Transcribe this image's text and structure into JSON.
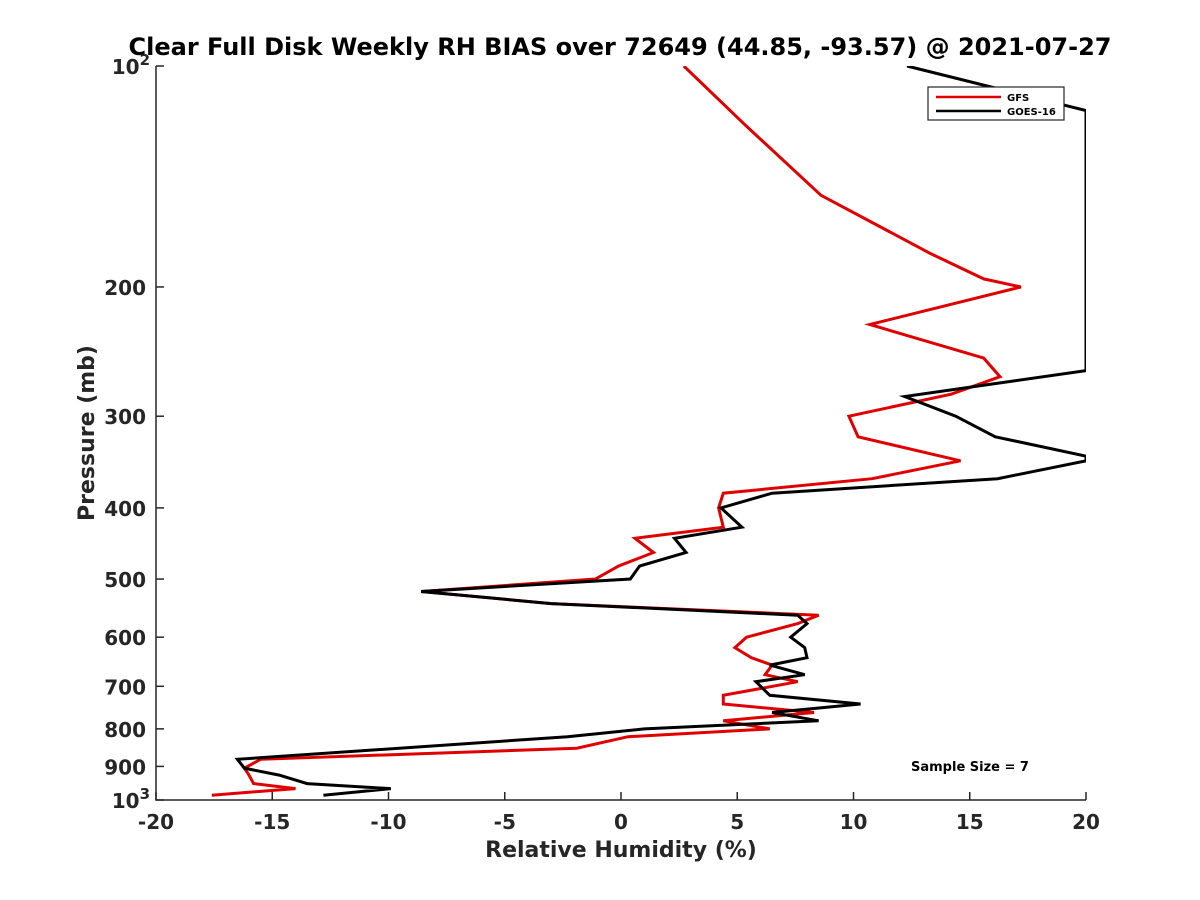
{
  "chart_data": {
    "type": "line",
    "title": "Clear Full Disk Weekly RH BIAS over 72649 (44.85, -93.57) @ 2021-07-27",
    "xlabel": "Relative Humidity (%)",
    "ylabel": "Pressure (mb)",
    "xlim": [
      -20,
      20
    ],
    "ylim": [
      100,
      1000
    ],
    "y_scale": "log",
    "y_reversed": true,
    "x_ticks": [
      {
        "value": -20,
        "label": "-20"
      },
      {
        "value": -15,
        "label": "-15"
      },
      {
        "value": -10,
        "label": "-10"
      },
      {
        "value": -5,
        "label": "-5"
      },
      {
        "value": 0,
        "label": "0"
      },
      {
        "value": 5,
        "label": "5"
      },
      {
        "value": 10,
        "label": "10"
      },
      {
        "value": 15,
        "label": "15"
      },
      {
        "value": 20,
        "label": "20"
      }
    ],
    "y_ticks": [
      {
        "value": 100,
        "base": "10",
        "exp": "2"
      },
      {
        "value": 200,
        "base": "200",
        "exp": ""
      },
      {
        "value": 300,
        "base": "300",
        "exp": ""
      },
      {
        "value": 400,
        "base": "400",
        "exp": ""
      },
      {
        "value": 500,
        "base": "500",
        "exp": ""
      },
      {
        "value": 600,
        "base": "600",
        "exp": ""
      },
      {
        "value": 700,
        "base": "700",
        "exp": ""
      },
      {
        "value": 800,
        "base": "800",
        "exp": ""
      },
      {
        "value": 900,
        "base": "900",
        "exp": ""
      },
      {
        "value": 1000,
        "base": "10",
        "exp": "3"
      }
    ],
    "grid": false,
    "legend_position": "top-right",
    "annotation": "Sample Size = 7",
    "series": [
      {
        "name": "GFS",
        "color": "#e00000",
        "points": [
          [
            2.7,
            100
          ],
          [
            5.3,
            120
          ],
          [
            8.6,
            150
          ],
          [
            13.3,
            180
          ],
          [
            15.6,
            195
          ],
          [
            17.2,
            200
          ],
          [
            10.7,
            225
          ],
          [
            15.6,
            250
          ],
          [
            16.3,
            265
          ],
          [
            14.2,
            280
          ],
          [
            9.8,
            300
          ],
          [
            10.2,
            320
          ],
          [
            14.6,
            345
          ],
          [
            10.8,
            365
          ],
          [
            4.4,
            382
          ],
          [
            4.2,
            400
          ],
          [
            4.4,
            425
          ],
          [
            0.6,
            440
          ],
          [
            1.4,
            460
          ],
          [
            -0.1,
            480
          ],
          [
            -1.1,
            500
          ],
          [
            -8.6,
            520
          ],
          [
            -3.0,
            540
          ],
          [
            8.5,
            560
          ],
          [
            7.6,
            575
          ],
          [
            5.4,
            600
          ],
          [
            4.9,
            620
          ],
          [
            5.6,
            640
          ],
          [
            6.5,
            655
          ],
          [
            6.2,
            675
          ],
          [
            7.6,
            690
          ],
          [
            4.4,
            720
          ],
          [
            4.4,
            740
          ],
          [
            8.3,
            760
          ],
          [
            4.4,
            780
          ],
          [
            6.4,
            800
          ],
          [
            0.3,
            820
          ],
          [
            -1.9,
            850
          ],
          [
            -15.5,
            880
          ],
          [
            -16.2,
            905
          ],
          [
            -16.0,
            925
          ],
          [
            -15.8,
            950
          ],
          [
            -14.0,
            965
          ],
          [
            -17.6,
            985
          ]
        ]
      },
      {
        "name": "GOES-16",
        "color": "#000000",
        "points": [
          [
            12.3,
            100
          ],
          [
            20.0,
            115
          ],
          [
            20.0,
            260
          ],
          [
            12.2,
            282
          ],
          [
            14.4,
            300
          ],
          [
            16.1,
            320
          ],
          [
            20.0,
            340
          ],
          [
            20.0,
            345
          ],
          [
            16.2,
            365
          ],
          [
            6.5,
            382
          ],
          [
            4.3,
            400
          ],
          [
            5.2,
            425
          ],
          [
            2.3,
            440
          ],
          [
            2.8,
            460
          ],
          [
            0.8,
            480
          ],
          [
            0.4,
            500
          ],
          [
            -8.6,
            520
          ],
          [
            -3.0,
            540
          ],
          [
            7.6,
            560
          ],
          [
            8.0,
            575
          ],
          [
            7.3,
            600
          ],
          [
            7.9,
            620
          ],
          [
            8.0,
            640
          ],
          [
            6.4,
            655
          ],
          [
            7.9,
            675
          ],
          [
            5.8,
            690
          ],
          [
            6.4,
            720
          ],
          [
            10.3,
            740
          ],
          [
            6.5,
            760
          ],
          [
            8.5,
            780
          ],
          [
            1.0,
            800
          ],
          [
            -2.3,
            820
          ],
          [
            -16.5,
            880
          ],
          [
            -16.2,
            905
          ],
          [
            -14.7,
            925
          ],
          [
            -13.5,
            950
          ],
          [
            -9.9,
            965
          ],
          [
            -12.8,
            985
          ]
        ]
      }
    ]
  }
}
